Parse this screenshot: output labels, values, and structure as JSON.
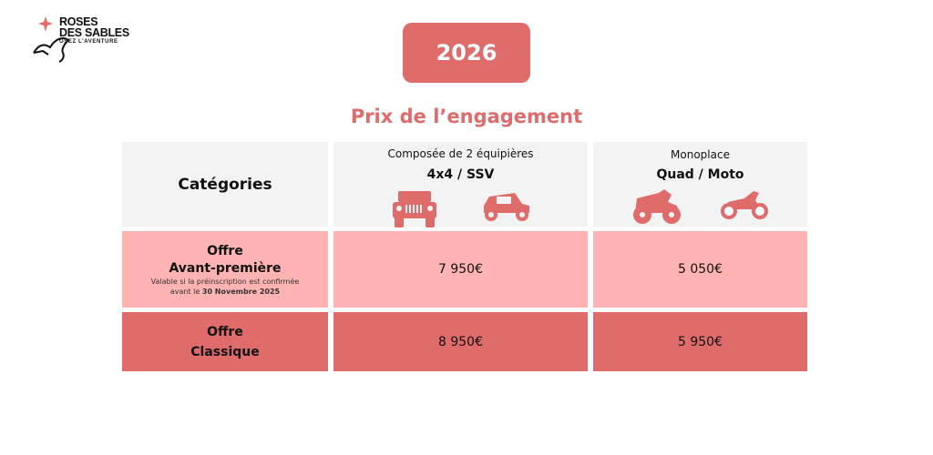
{
  "logo": {
    "line1": "ROSES",
    "line2": "DES SABLES",
    "tagline": "OSEZ L'AVENTURE"
  },
  "year": "2026",
  "title": "Prix de l’engagement",
  "table": {
    "header": {
      "categories": "Catégories",
      "col1": {
        "subtitle": "Composée de 2 équipières",
        "title": "4x4 / SSV"
      },
      "col2": {
        "subtitle": "Monoplace",
        "title": "Quad / Moto"
      }
    },
    "rows": [
      {
        "label1": "Offre",
        "label2": "Avant-première",
        "note1": "Valable si la préinscription est confirmée",
        "note2_prefix": "avant le",
        "note2_date": "30  Novembre 2025",
        "price1": "7 950€",
        "price2": "5 050€"
      },
      {
        "label1": "Offre",
        "label2": "Classique",
        "price1": "8 950€",
        "price2": "5 950€"
      }
    ]
  },
  "colors": {
    "accent": "#e06b6b",
    "light": "#ffb3b3",
    "header_bg": "#f3f3f3"
  }
}
